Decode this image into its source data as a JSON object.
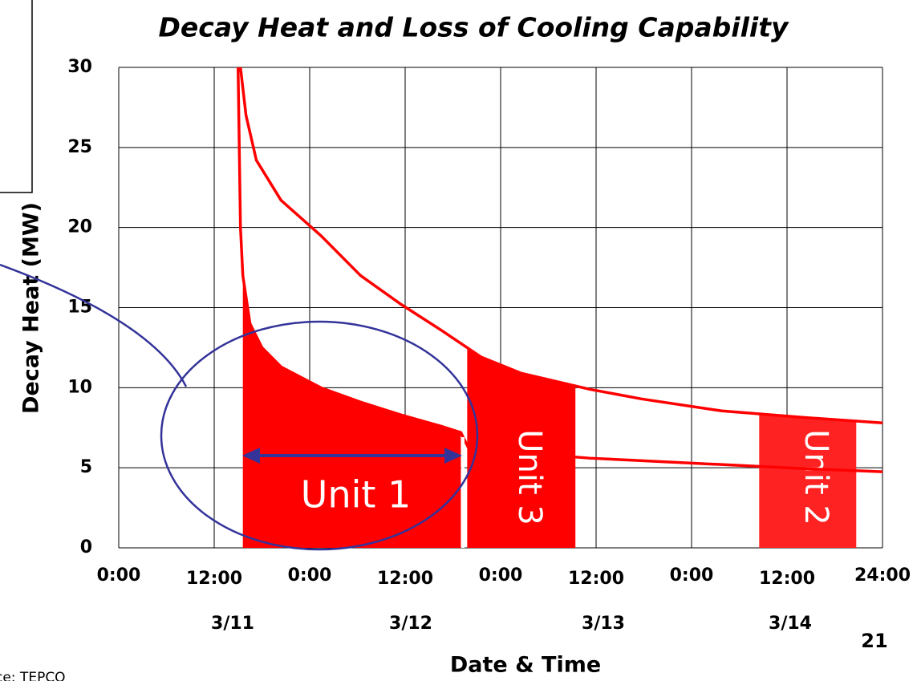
{
  "chart_data": {
    "type": "line",
    "title": "Decay Heat and Loss of Cooling Capability",
    "x_label": "Date & Time",
    "y_label": "Decay Heat (MW)",
    "date_labels": [
      "3/11",
      "3/12",
      "3/13",
      "3/14"
    ],
    "page_number": "21",
    "source": "ce: TEPCO",
    "xlim": [
      0,
      96
    ],
    "xticks": [
      {
        "value": 0,
        "label": "0:00"
      },
      {
        "value": 12,
        "label": "12:00"
      },
      {
        "value": 24,
        "label": "0:00"
      },
      {
        "value": 36,
        "label": "12:00"
      },
      {
        "value": 48,
        "label": "0:00"
      },
      {
        "value": 60,
        "label": "12:00"
      },
      {
        "value": 72,
        "label": "0:00"
      },
      {
        "value": 84,
        "label": "12:00"
      },
      {
        "value": 96,
        "label": "24:00"
      }
    ],
    "ylim": [
      0,
      30
    ],
    "yticks": [
      0,
      5,
      10,
      15,
      20,
      25,
      30
    ],
    "grid": true,
    "series": [
      {
        "color": "#ff0000",
        "x": [
          15.3,
          16,
          17.3,
          20.4,
          25.4,
          30.4,
          35.5,
          40.5,
          45.6,
          50.6,
          59.2,
          65.7,
          75.8,
          85.9,
          96
        ],
        "values": [
          30,
          27,
          24.2,
          21.7,
          19.5,
          17,
          15.2,
          13.6,
          11.9,
          10.9,
          9.9,
          9.3,
          8.55,
          8.15,
          7.8
        ],
        "regions": [
          {
            "label": "Unit 3",
            "start": 43.8,
            "end": 57.4,
            "color": "#ff0000"
          },
          {
            "label": "Unit 2",
            "start": 80.5,
            "end": 92.7,
            "color": "#ff2222"
          }
        ]
      },
      {
        "color": "#ff0000",
        "x": [
          15,
          15.3,
          15.6,
          16.5,
          18,
          20.4,
          25.4,
          30.4,
          35.5,
          40.5,
          43,
          44,
          59.2,
          75.8,
          85.9,
          96
        ],
        "values": [
          30,
          20,
          17,
          14,
          12.5,
          11.3,
          10,
          9.1,
          8.3,
          7.6,
          7.2,
          6.2,
          5.6,
          5.2,
          4.95,
          4.75
        ],
        "regions": [
          {
            "label": "Unit 1",
            "start": 15.6,
            "end": 43,
            "color": "#ff0000"
          }
        ]
      }
    ]
  }
}
